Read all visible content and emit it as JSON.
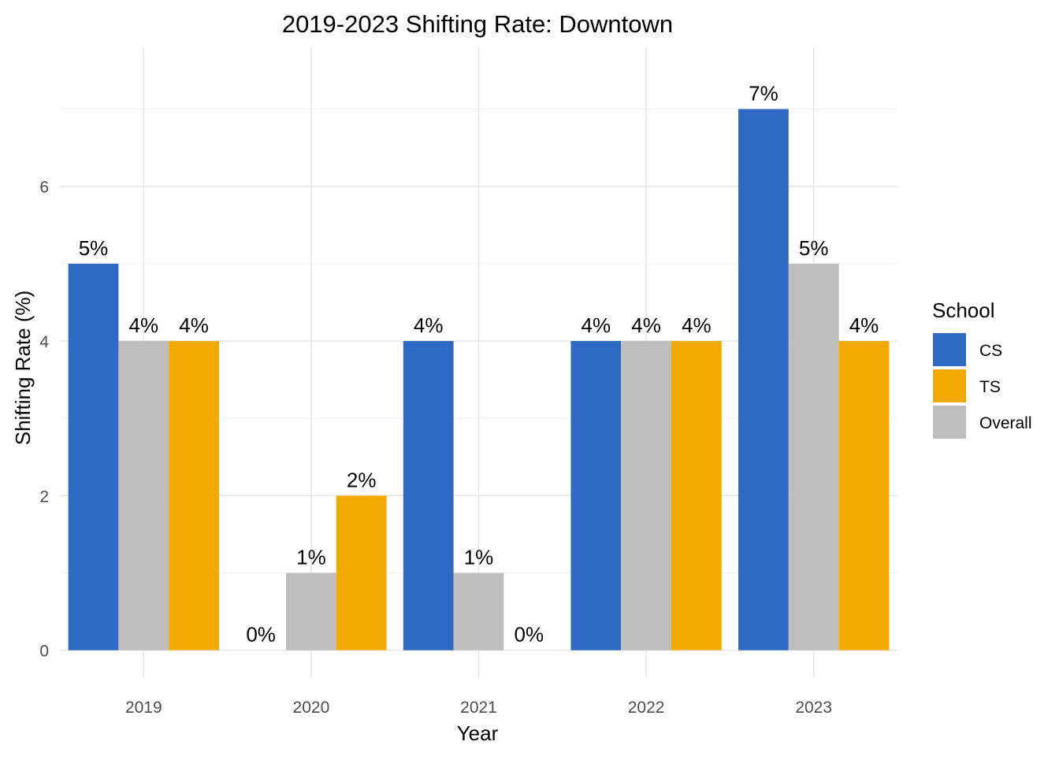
{
  "chart_data": {
    "type": "bar",
    "title": "2019-2023 Shifting Rate: Downtown",
    "xlabel": "Year",
    "ylabel": "Shifting Rate (%)",
    "categories": [
      "2019",
      "2020",
      "2021",
      "2022",
      "2023"
    ],
    "ylim": [
      -0.35,
      7.8
    ],
    "yticks": [
      0,
      2,
      4,
      6
    ],
    "grid": true,
    "legend": {
      "title": "School",
      "position": "right"
    },
    "bar_order": [
      "CS",
      "Overall",
      "TS"
    ],
    "series": [
      {
        "name": "CS",
        "color": "#2E69C4",
        "values": [
          5,
          0,
          4,
          4,
          7
        ],
        "labels": [
          "5%",
          "0%",
          "4%",
          "4%",
          "7%"
        ]
      },
      {
        "name": "TS",
        "color": "#F2AA00",
        "values": [
          4,
          2,
          0,
          4,
          4
        ],
        "labels": [
          "4%",
          "2%",
          "0%",
          "4%",
          "4%"
        ]
      },
      {
        "name": "Overall",
        "color": "#BEBEBE",
        "values": [
          4,
          1,
          1,
          4,
          5
        ],
        "labels": [
          "4%",
          "1%",
          "1%",
          "4%",
          "5%"
        ]
      }
    ]
  }
}
